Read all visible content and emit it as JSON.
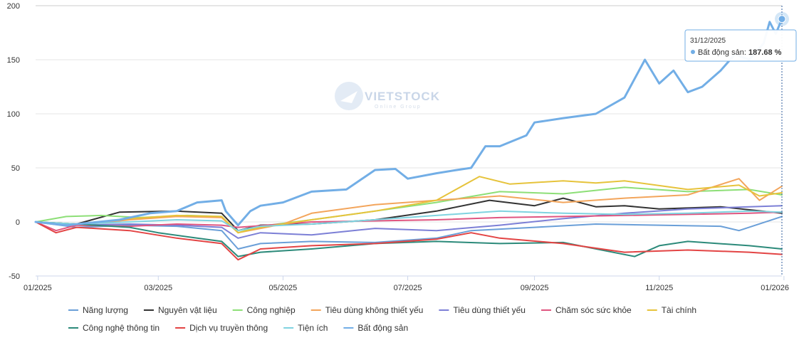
{
  "watermark": {
    "brand": "VIETSTOCK",
    "tagline": "Online Group"
  },
  "tooltip": {
    "date": "31/12/2025",
    "series_label": "Bất động sản: ",
    "value_text": "187.68 %"
  },
  "chart_data": {
    "type": "line",
    "title": "",
    "xlabel": "",
    "ylabel": "",
    "x_range": [
      "2024-12-31",
      "2025-12-31"
    ],
    "ylim": [
      -50,
      200
    ],
    "y_ticks": [
      -50,
      0,
      50,
      100,
      150,
      200
    ],
    "x_ticks": [
      {
        "date": "2025-01-01",
        "label": "01/2025"
      },
      {
        "date": "2025-03-01",
        "label": "03/2025"
      },
      {
        "date": "2025-05-01",
        "label": "05/2025"
      },
      {
        "date": "2025-07-01",
        "label": "07/2025"
      },
      {
        "date": "2025-09-01",
        "label": "09/2025"
      },
      {
        "date": "2025-11-01",
        "label": "11/2025"
      },
      {
        "date": "2026-01-01",
        "label": "01/2026"
      }
    ],
    "grid": "horizontal",
    "legend_position": "bottom",
    "highlight": {
      "series": "Bất động sản",
      "date": "2025-12-31",
      "value": 187.68
    },
    "series": [
      {
        "name": "Năng lượng",
        "color": "#6a9fd8",
        "points": [
          [
            "2024-12-31",
            0
          ],
          [
            "2025-01-20",
            -5
          ],
          [
            "2025-02-15",
            -3
          ],
          [
            "2025-03-10",
            -4
          ],
          [
            "2025-04-01",
            -8
          ],
          [
            "2025-04-09",
            -25
          ],
          [
            "2025-04-20",
            -20
          ],
          [
            "2025-05-15",
            -18
          ],
          [
            "2025-06-15",
            -19
          ],
          [
            "2025-07-15",
            -15
          ],
          [
            "2025-08-01",
            -8
          ],
          [
            "2025-09-01",
            -5
          ],
          [
            "2025-10-01",
            -2
          ],
          [
            "2025-11-01",
            -3
          ],
          [
            "2025-12-01",
            -4
          ],
          [
            "2025-12-10",
            -8
          ],
          [
            "2025-12-31",
            5
          ]
        ]
      },
      {
        "name": "Nguyên vật liệu",
        "color": "#333333",
        "points": [
          [
            "2024-12-31",
            0
          ],
          [
            "2025-01-20",
            -2
          ],
          [
            "2025-02-10",
            9
          ],
          [
            "2025-03-10",
            10
          ],
          [
            "2025-04-01",
            8
          ],
          [
            "2025-04-09",
            -8
          ],
          [
            "2025-04-20",
            -3
          ],
          [
            "2025-05-15",
            -2
          ],
          [
            "2025-06-15",
            2
          ],
          [
            "2025-07-15",
            10
          ],
          [
            "2025-08-10",
            20
          ],
          [
            "2025-09-01",
            15
          ],
          [
            "2025-09-15",
            22
          ],
          [
            "2025-10-01",
            14
          ],
          [
            "2025-10-15",
            15
          ],
          [
            "2025-11-01",
            12
          ],
          [
            "2025-12-01",
            14
          ],
          [
            "2025-12-31",
            8
          ]
        ]
      },
      {
        "name": "Công nghiệp",
        "color": "#8ddf77",
        "points": [
          [
            "2024-12-31",
            0
          ],
          [
            "2025-01-15",
            5
          ],
          [
            "2025-02-01",
            6
          ],
          [
            "2025-02-20",
            4
          ],
          [
            "2025-03-15",
            6
          ],
          [
            "2025-04-01",
            5
          ],
          [
            "2025-04-09",
            -10
          ],
          [
            "2025-04-20",
            -4
          ],
          [
            "2025-05-15",
            2
          ],
          [
            "2025-06-15",
            10
          ],
          [
            "2025-07-15",
            18
          ],
          [
            "2025-08-15",
            28
          ],
          [
            "2025-09-15",
            26
          ],
          [
            "2025-10-15",
            32
          ],
          [
            "2025-11-15",
            28
          ],
          [
            "2025-12-15",
            30
          ],
          [
            "2025-12-31",
            25
          ]
        ]
      },
      {
        "name": "Tiêu dùng không thiết yếu",
        "color": "#f3a55b",
        "points": [
          [
            "2024-12-31",
            0
          ],
          [
            "2025-01-20",
            -3
          ],
          [
            "2025-02-15",
            2
          ],
          [
            "2025-03-10",
            5
          ],
          [
            "2025-04-01",
            4
          ],
          [
            "2025-04-09",
            -10
          ],
          [
            "2025-04-20",
            -6
          ],
          [
            "2025-05-01",
            -2
          ],
          [
            "2025-05-15",
            8
          ],
          [
            "2025-06-15",
            16
          ],
          [
            "2025-07-15",
            20
          ],
          [
            "2025-08-15",
            24
          ],
          [
            "2025-09-15",
            18
          ],
          [
            "2025-10-15",
            22
          ],
          [
            "2025-11-15",
            25
          ],
          [
            "2025-12-10",
            40
          ],
          [
            "2025-12-20",
            20
          ],
          [
            "2025-12-31",
            33
          ]
        ]
      },
      {
        "name": "Tiêu dùng thiết yếu",
        "color": "#7c7fd6",
        "points": [
          [
            "2024-12-31",
            0
          ],
          [
            "2025-01-20",
            -3
          ],
          [
            "2025-02-15",
            -2
          ],
          [
            "2025-03-10",
            -3
          ],
          [
            "2025-04-01",
            -5
          ],
          [
            "2025-04-09",
            -15
          ],
          [
            "2025-04-20",
            -10
          ],
          [
            "2025-05-15",
            -12
          ],
          [
            "2025-06-15",
            -6
          ],
          [
            "2025-07-15",
            -8
          ],
          [
            "2025-08-15",
            -3
          ],
          [
            "2025-09-15",
            3
          ],
          [
            "2025-10-15",
            8
          ],
          [
            "2025-11-15",
            12
          ],
          [
            "2025-12-15",
            14
          ],
          [
            "2025-12-31",
            15
          ]
        ]
      },
      {
        "name": "Chăm sóc sức khỏe",
        "color": "#e05580",
        "points": [
          [
            "2024-12-31",
            0
          ],
          [
            "2025-01-10",
            -8
          ],
          [
            "2025-01-20",
            -3
          ],
          [
            "2025-02-15",
            -4
          ],
          [
            "2025-03-10",
            -2
          ],
          [
            "2025-04-01",
            -3
          ],
          [
            "2025-04-09",
            -5
          ],
          [
            "2025-05-15",
            0
          ],
          [
            "2025-06-15",
            1
          ],
          [
            "2025-07-15",
            2
          ],
          [
            "2025-08-15",
            4
          ],
          [
            "2025-09-15",
            5
          ],
          [
            "2025-10-15",
            6
          ],
          [
            "2025-11-15",
            7
          ],
          [
            "2025-12-15",
            8
          ],
          [
            "2025-12-31",
            9
          ]
        ]
      },
      {
        "name": "Tài chính",
        "color": "#e6c33b",
        "points": [
          [
            "2024-12-31",
            0
          ],
          [
            "2025-01-20",
            -2
          ],
          [
            "2025-02-15",
            3
          ],
          [
            "2025-03-10",
            6
          ],
          [
            "2025-04-01",
            5
          ],
          [
            "2025-04-09",
            -10
          ],
          [
            "2025-04-20",
            -5
          ],
          [
            "2025-05-15",
            2
          ],
          [
            "2025-06-15",
            10
          ],
          [
            "2025-07-15",
            20
          ],
          [
            "2025-08-05",
            42
          ],
          [
            "2025-08-20",
            35
          ],
          [
            "2025-09-15",
            38
          ],
          [
            "2025-10-01",
            36
          ],
          [
            "2025-10-15",
            38
          ],
          [
            "2025-11-15",
            30
          ],
          [
            "2025-12-10",
            34
          ],
          [
            "2025-12-20",
            24
          ],
          [
            "2025-12-31",
            27
          ]
        ]
      },
      {
        "name": "Công nghệ thông tin",
        "color": "#2c8a7a",
        "points": [
          [
            "2024-12-31",
            0
          ],
          [
            "2025-01-20",
            -2
          ],
          [
            "2025-02-15",
            -5
          ],
          [
            "2025-03-01",
            -10
          ],
          [
            "2025-03-20",
            -15
          ],
          [
            "2025-04-01",
            -18
          ],
          [
            "2025-04-09",
            -32
          ],
          [
            "2025-04-20",
            -28
          ],
          [
            "2025-05-15",
            -25
          ],
          [
            "2025-06-15",
            -20
          ],
          [
            "2025-07-15",
            -18
          ],
          [
            "2025-08-15",
            -20
          ],
          [
            "2025-09-15",
            -19
          ],
          [
            "2025-10-20",
            -32
          ],
          [
            "2025-11-01",
            -22
          ],
          [
            "2025-11-15",
            -18
          ],
          [
            "2025-12-15",
            -22
          ],
          [
            "2025-12-31",
            -25
          ]
        ]
      },
      {
        "name": "Dịch vụ truyền thông",
        "color": "#e34444",
        "points": [
          [
            "2024-12-31",
            0
          ],
          [
            "2025-01-10",
            -10
          ],
          [
            "2025-01-20",
            -5
          ],
          [
            "2025-02-15",
            -8
          ],
          [
            "2025-03-10",
            -15
          ],
          [
            "2025-04-01",
            -20
          ],
          [
            "2025-04-09",
            -35
          ],
          [
            "2025-04-20",
            -25
          ],
          [
            "2025-05-15",
            -22
          ],
          [
            "2025-06-15",
            -20
          ],
          [
            "2025-07-15",
            -16
          ],
          [
            "2025-08-01",
            -10
          ],
          [
            "2025-08-15",
            -15
          ],
          [
            "2025-09-15",
            -20
          ],
          [
            "2025-10-15",
            -28
          ],
          [
            "2025-11-15",
            -26
          ],
          [
            "2025-12-15",
            -28
          ],
          [
            "2025-12-31",
            -30
          ]
        ]
      },
      {
        "name": "Tiện ích",
        "color": "#7fd3e0",
        "points": [
          [
            "2024-12-31",
            0
          ],
          [
            "2025-01-20",
            -2
          ],
          [
            "2025-02-15",
            0
          ],
          [
            "2025-03-10",
            2
          ],
          [
            "2025-04-01",
            1
          ],
          [
            "2025-04-09",
            -8
          ],
          [
            "2025-04-20",
            -4
          ],
          [
            "2025-05-15",
            -2
          ],
          [
            "2025-06-15",
            2
          ],
          [
            "2025-07-15",
            6
          ],
          [
            "2025-08-15",
            10
          ],
          [
            "2025-09-15",
            8
          ],
          [
            "2025-10-15",
            7
          ],
          [
            "2025-11-15",
            8
          ],
          [
            "2025-12-15",
            10
          ],
          [
            "2025-12-31",
            9
          ]
        ]
      },
      {
        "name": "Bất động sản",
        "color": "#72aee6",
        "bold": true,
        "points": [
          [
            "2024-12-31",
            0
          ],
          [
            "2025-01-15",
            -3
          ],
          [
            "2025-02-10",
            2
          ],
          [
            "2025-02-25",
            8
          ],
          [
            "2025-03-10",
            10
          ],
          [
            "2025-03-20",
            18
          ],
          [
            "2025-04-01",
            20
          ],
          [
            "2025-04-03",
            10
          ],
          [
            "2025-04-09",
            -3
          ],
          [
            "2025-04-15",
            10
          ],
          [
            "2025-04-20",
            15
          ],
          [
            "2025-05-01",
            18
          ],
          [
            "2025-05-15",
            28
          ],
          [
            "2025-06-01",
            30
          ],
          [
            "2025-06-15",
            48
          ],
          [
            "2025-06-25",
            49
          ],
          [
            "2025-07-01",
            40
          ],
          [
            "2025-07-15",
            45
          ],
          [
            "2025-07-25",
            48
          ],
          [
            "2025-08-01",
            50
          ],
          [
            "2025-08-08",
            70
          ],
          [
            "2025-08-15",
            70
          ],
          [
            "2025-08-28",
            80
          ],
          [
            "2025-09-01",
            92
          ],
          [
            "2025-09-15",
            96
          ],
          [
            "2025-10-01",
            100
          ],
          [
            "2025-10-15",
            115
          ],
          [
            "2025-10-25",
            150
          ],
          [
            "2025-11-01",
            128
          ],
          [
            "2025-11-08",
            140
          ],
          [
            "2025-11-15",
            120
          ],
          [
            "2025-11-22",
            125
          ],
          [
            "2025-12-01",
            140
          ],
          [
            "2025-12-08",
            155
          ],
          [
            "2025-12-15",
            150
          ],
          [
            "2025-12-22",
            165
          ],
          [
            "2025-12-25",
            185
          ],
          [
            "2025-12-28",
            174
          ],
          [
            "2025-12-31",
            187.68
          ]
        ]
      }
    ]
  }
}
